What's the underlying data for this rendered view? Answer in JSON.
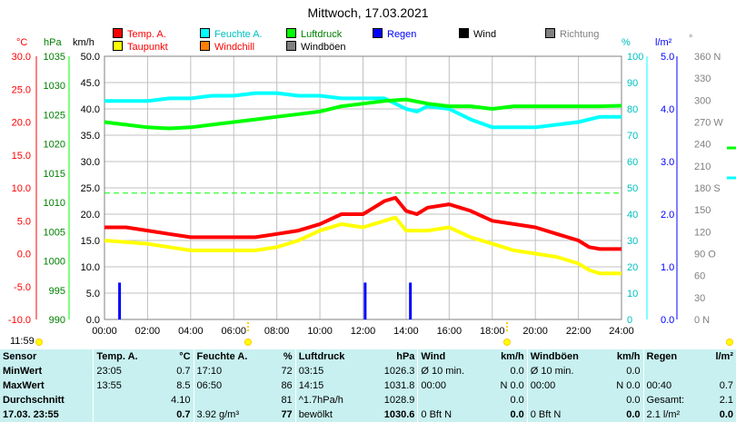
{
  "header": {
    "title": "Mittwoch, 17.03.2021"
  },
  "legend": [
    {
      "label": "Temp. A.",
      "color": "#ff0000"
    },
    {
      "label": "Feuchte A.",
      "color": "#00ffff"
    },
    {
      "label": "Luftdruck",
      "color": "#00ff00"
    },
    {
      "label": "Regen",
      "color": "#0000ff"
    },
    {
      "label": "Wind",
      "color": "#000000"
    },
    {
      "label": "Richtung",
      "color": "#808080"
    },
    {
      "label": "Taupunkt",
      "color": "#ffff00"
    },
    {
      "label": "Windchill",
      "color": "#ff8000"
    },
    {
      "label": "Windböen",
      "color": "#808080"
    }
  ],
  "axes_units": {
    "temp": "°C",
    "pressure": "hPa",
    "wind": "km/h",
    "humidity": "%",
    "rain": "l/m²",
    "direction": "°"
  },
  "time_marker": {
    "label": "11:59"
  },
  "stats": {
    "headers": [
      {
        "label": "Sensor"
      },
      {
        "label": "Temp. A.",
        "unit": "°C"
      },
      {
        "label": "Feuchte A.",
        "unit": "%"
      },
      {
        "label": "Luftdruck",
        "unit": "hPa"
      },
      {
        "label": "Wind",
        "unit": "km/h"
      },
      {
        "label": "Windböen",
        "unit": "km/h"
      },
      {
        "label": "Regen",
        "unit": "l/m²"
      }
    ],
    "rows": [
      {
        "sensor": "MinWert",
        "cells": [
          "23:05",
          "0.7",
          "17:10",
          "72",
          "03:15",
          "1026.3",
          "Ø 10 min.",
          "0.0",
          "Ø 10 min.",
          "0.0",
          "",
          ""
        ]
      },
      {
        "sensor": "MaxWert",
        "cells": [
          "13:55",
          "8.5",
          "06:50",
          "86",
          "14:15",
          "1031.8",
          "00:00",
          "N 0.0",
          "00:00",
          "N 0.0",
          "00:40",
          "0.7"
        ]
      },
      {
        "sensor": "Durchschnitt",
        "cells": [
          "",
          "4.10",
          "",
          "81",
          "^1.7hPa/h",
          "1028.9",
          "",
          "0.0",
          "",
          "0.0",
          "Gesamt:",
          "2.1"
        ]
      },
      {
        "sensor": "17.03. 23:55",
        "cells": [
          "",
          "0.7",
          "3.92 g/m³",
          "77",
          "bewölkt",
          "1030.6",
          "0 Bft N",
          "0.0",
          "0 Bft N",
          "0.0",
          "2.1 l/m²",
          "0.0"
        ]
      }
    ]
  },
  "chart_data": {
    "type": "line",
    "x_label": "",
    "x_ticks": [
      "00:00",
      "02:00",
      "04:00",
      "06:00",
      "08:00",
      "10:00",
      "12:00",
      "14:00",
      "16:00",
      "18:00",
      "20:00",
      "22:00",
      "24:00"
    ],
    "x_range_hours": [
      0,
      24
    ],
    "axes": {
      "temp_c": {
        "ticks": [
          "30.0",
          "25.0",
          "20.0",
          "15.0",
          "10.0",
          "5.0",
          "0.0",
          "-5.0",
          "-10.0"
        ],
        "range": [
          -10,
          30
        ]
      },
      "pressure_hpa": {
        "ticks": [
          "1035",
          "1030",
          "1025",
          "1020",
          "1015",
          "1010",
          "1005",
          "1000",
          "995",
          "990"
        ],
        "range": [
          990,
          1040
        ]
      },
      "wind_kmh": {
        "ticks": [
          "50.0",
          "45.0",
          "40.0",
          "35.0",
          "30.0",
          "25.0",
          "20.0",
          "15.0",
          "10.0",
          "5.0",
          "0.0"
        ],
        "range": [
          0,
          50
        ]
      },
      "humidity_pct": {
        "ticks": [
          "100",
          "90",
          "80",
          "70",
          "60",
          "50",
          "40",
          "30",
          "20",
          "10",
          "0"
        ],
        "range": [
          0,
          100
        ]
      },
      "rain_lm2": {
        "ticks": [
          "5.0",
          "4.0",
          "3.0",
          "2.0",
          "1.0",
          "0.0"
        ],
        "range": [
          0,
          5
        ]
      },
      "direction_deg": {
        "ticks": [
          "360 N",
          "330",
          "300",
          "270 W",
          "240",
          "210",
          "180 S",
          "150",
          "120",
          "90 O",
          "60",
          "30",
          "0 N"
        ],
        "range": [
          0,
          360
        ]
      }
    },
    "series": [
      {
        "name": "Temp. A.",
        "color": "#ff0000",
        "axis": "temp_c",
        "points": [
          [
            0,
            4.0
          ],
          [
            1,
            4.0
          ],
          [
            2,
            3.5
          ],
          [
            3,
            3.0
          ],
          [
            4,
            2.5
          ],
          [
            5,
            2.5
          ],
          [
            6,
            2.5
          ],
          [
            7,
            2.5
          ],
          [
            8,
            3.0
          ],
          [
            9,
            3.5
          ],
          [
            10,
            4.5
          ],
          [
            11,
            6.0
          ],
          [
            12,
            6.0
          ],
          [
            12.5,
            7.0
          ],
          [
            13,
            8.0
          ],
          [
            13.5,
            8.5
          ],
          [
            14,
            6.5
          ],
          [
            14.5,
            6.0
          ],
          [
            15,
            7.0
          ],
          [
            16,
            7.5
          ],
          [
            17,
            6.5
          ],
          [
            18,
            5.0
          ],
          [
            19,
            4.5
          ],
          [
            20,
            4.0
          ],
          [
            21,
            3.0
          ],
          [
            22,
            2.0
          ],
          [
            22.5,
            1.0
          ],
          [
            23,
            0.7
          ],
          [
            24,
            0.7
          ]
        ]
      },
      {
        "name": "Taupunkt",
        "color": "#ffff00",
        "axis": "temp_c",
        "points": [
          [
            0,
            2.0
          ],
          [
            2,
            1.5
          ],
          [
            3,
            1.0
          ],
          [
            4,
            0.5
          ],
          [
            5,
            0.5
          ],
          [
            6,
            0.5
          ],
          [
            7,
            0.5
          ],
          [
            8,
            1.0
          ],
          [
            9,
            2.0
          ],
          [
            10,
            3.5
          ],
          [
            11,
            4.5
          ],
          [
            12,
            4.0
          ],
          [
            13,
            5.0
          ],
          [
            13.5,
            5.5
          ],
          [
            14,
            3.5
          ],
          [
            15,
            3.5
          ],
          [
            16,
            4.0
          ],
          [
            17,
            2.5
          ],
          [
            18,
            1.5
          ],
          [
            19,
            0.5
          ],
          [
            20,
            0.0
          ],
          [
            21,
            -0.5
          ],
          [
            22,
            -1.5
          ],
          [
            22.5,
            -2.5
          ],
          [
            23,
            -3.0
          ],
          [
            24,
            -3.0
          ]
        ]
      },
      {
        "name": "Feuchte A.",
        "color": "#00ffff",
        "axis": "humidity_pct",
        "points": [
          [
            0,
            83
          ],
          [
            1,
            83
          ],
          [
            2,
            83
          ],
          [
            3,
            84
          ],
          [
            4,
            84
          ],
          [
            5,
            85
          ],
          [
            6,
            85
          ],
          [
            7,
            86
          ],
          [
            8,
            86
          ],
          [
            9,
            85
          ],
          [
            10,
            85
          ],
          [
            11,
            84
          ],
          [
            12,
            84
          ],
          [
            13,
            84
          ],
          [
            14,
            80
          ],
          [
            14.5,
            79
          ],
          [
            15,
            81
          ],
          [
            16,
            80
          ],
          [
            17,
            76
          ],
          [
            18,
            73
          ],
          [
            19,
            73
          ],
          [
            20,
            73
          ],
          [
            21,
            74
          ],
          [
            22,
            75
          ],
          [
            23,
            77
          ],
          [
            24,
            77
          ]
        ]
      },
      {
        "name": "Luftdruck",
        "color": "#00ff00",
        "axis": "pressure_hpa",
        "points": [
          [
            0,
            1027.5
          ],
          [
            1,
            1027.0
          ],
          [
            2,
            1026.5
          ],
          [
            3,
            1026.3
          ],
          [
            4,
            1026.5
          ],
          [
            5,
            1027.0
          ],
          [
            6,
            1027.5
          ],
          [
            7,
            1028.0
          ],
          [
            8,
            1028.5
          ],
          [
            9,
            1029.0
          ],
          [
            10,
            1029.5
          ],
          [
            11,
            1030.5
          ],
          [
            12,
            1031.0
          ],
          [
            13,
            1031.5
          ],
          [
            14,
            1031.8
          ],
          [
            15,
            1031.0
          ],
          [
            16,
            1030.5
          ],
          [
            17,
            1030.5
          ],
          [
            18,
            1030.0
          ],
          [
            19,
            1030.5
          ],
          [
            20,
            1030.5
          ],
          [
            21,
            1030.5
          ],
          [
            22,
            1030.5
          ],
          [
            23,
            1030.5
          ],
          [
            24,
            1030.6
          ]
        ]
      }
    ],
    "reference_lines": [
      {
        "axis": "humidity_pct",
        "value": 48,
        "color": "#00ff00",
        "style": "dashed"
      }
    ],
    "rain_bars": [
      {
        "time_h": 0.7,
        "value": 0.7
      },
      {
        "time_h": 12.1,
        "value": 0.7
      },
      {
        "time_h": 14.2,
        "value": 0.7
      }
    ],
    "grid": true
  }
}
